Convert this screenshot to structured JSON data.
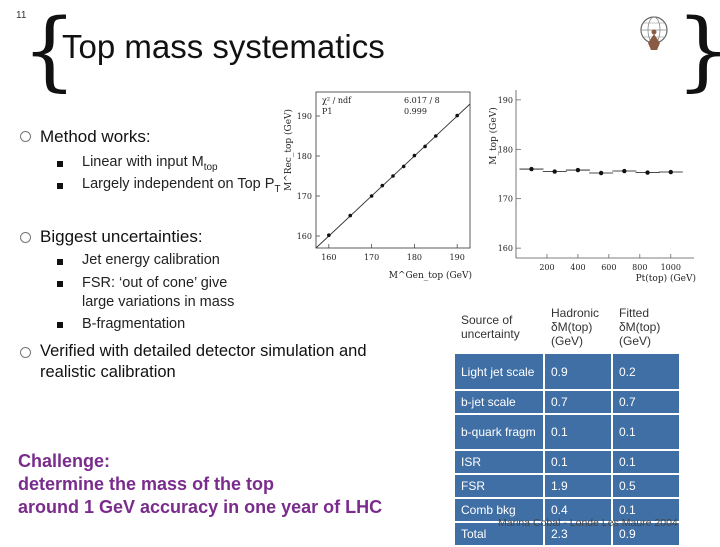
{
  "slide": {
    "number": "11",
    "title": "Top mass systematics",
    "logo_icon": "atlas-globe-icon"
  },
  "bullets": {
    "method": "Method works:",
    "method_sub1": "Linear with input M",
    "method_sub1_sub": "top",
    "method_sub2": "Largely independent on Top P",
    "method_sub2_sub": "T",
    "biggest": "Biggest uncertainties:",
    "biggest_sub1": "Jet energy calibration",
    "biggest_sub2": "FSR: ‘out of cone’ give large variations in mass",
    "biggest_sub3": "B-fragmentation",
    "verified": "Verified with detailed detector simulation and realistic calibration"
  },
  "challenge": {
    "line1": "Challenge:",
    "line2": "determine the mass of the top",
    "line3": "around 1 GeV accuracy in one year of LHC"
  },
  "footer": "Marina Cobal - Londe Les Maure 2004",
  "table": {
    "headers": [
      "Source of uncertainty",
      "Hadronic δM(top) (GeV)",
      "Fitted δM(top) (GeV)"
    ],
    "rows": [
      {
        "source": "Light jet scale",
        "hadronic": "0.9",
        "fitted": "0.2"
      },
      {
        "source": "b-jet scale",
        "hadronic": "0.7",
        "fitted": "0.7"
      },
      {
        "source": "b-quark fragm",
        "hadronic": "0.1",
        "fitted": "0.1"
      },
      {
        "source": "ISR",
        "hadronic": "0.1",
        "fitted": "0.1"
      },
      {
        "source": "FSR",
        "hadronic": "1.9",
        "fitted": "0.5"
      },
      {
        "source": "Comb bkg",
        "hadronic": "0.4",
        "fitted": "0.1"
      },
      {
        "source": "Total",
        "hadronic": "2.3",
        "fitted": "0.9"
      }
    ]
  },
  "chart_data": [
    {
      "type": "scatter",
      "ylabel": "M^Rec_top (GeV)",
      "xlabel": "M^Gen_top (GeV)",
      "x_ticks": [
        "160",
        "170",
        "180",
        "190"
      ],
      "y_ticks": [
        "160",
        "170",
        "180",
        "190"
      ],
      "xlim": [
        157,
        193
      ],
      "ylim": [
        157,
        196
      ],
      "legend": {
        "line1": "χ² / ndf",
        "line2": "P1",
        "value1": "6.017 / 8",
        "value2": "0.999"
      },
      "points": [
        {
          "x": 160,
          "y": 160.2
        },
        {
          "x": 165,
          "y": 165.1
        },
        {
          "x": 170,
          "y": 170.0
        },
        {
          "x": 172.5,
          "y": 172.6
        },
        {
          "x": 175,
          "y": 175.0
        },
        {
          "x": 177.5,
          "y": 177.4
        },
        {
          "x": 180,
          "y": 180.1
        },
        {
          "x": 182.5,
          "y": 182.4
        },
        {
          "x": 185,
          "y": 185.0
        },
        {
          "x": 190,
          "y": 190.1
        }
      ]
    },
    {
      "type": "scatter",
      "ylabel": "M_top (GeV)",
      "xlabel": "Pt(top) (GeV)",
      "x_ticks": [
        "200",
        "400",
        "600",
        "800",
        "1000"
      ],
      "y_ticks": [
        "160",
        "170",
        "180",
        "190"
      ],
      "xlim": [
        0,
        1150
      ],
      "ylim": [
        158,
        192
      ],
      "points": [
        {
          "x": 100,
          "y": 176.0
        },
        {
          "x": 250,
          "y": 175.5
        },
        {
          "x": 400,
          "y": 175.8
        },
        {
          "x": 550,
          "y": 175.2
        },
        {
          "x": 700,
          "y": 175.6
        },
        {
          "x": 850,
          "y": 175.3
        },
        {
          "x": 1000,
          "y": 175.4
        }
      ]
    }
  ]
}
